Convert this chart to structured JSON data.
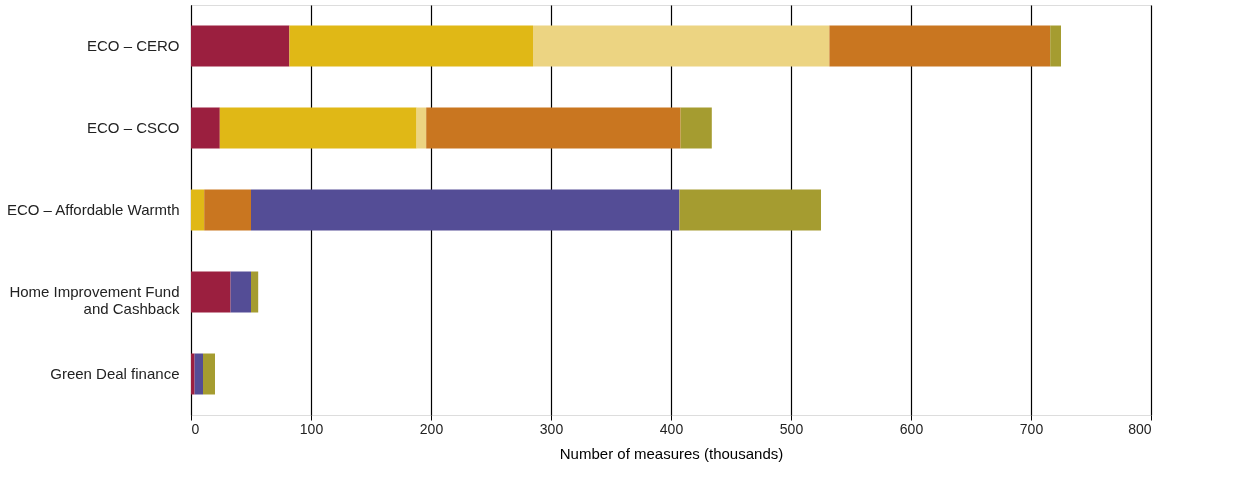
{
  "chart_data": {
    "type": "bar",
    "orientation": "horizontal",
    "stacked": true,
    "xlabel": "Number of measures (thousands)",
    "categories": [
      "ECO – CERO",
      "ECO – CSCO",
      "ECO – Affordable Warmth",
      "Home Improvement Fund and Cashback",
      "Green Deal finance"
    ],
    "series": [
      {
        "color": "#9b1f3f",
        "values": [
          82,
          24,
          null,
          33,
          3
        ]
      },
      {
        "color": "#e0b816",
        "values": [
          203,
          164,
          11,
          null,
          null
        ]
      },
      {
        "color": "#ecd482",
        "values": [
          247,
          8,
          null,
          null,
          null
        ]
      },
      {
        "color": "#c97620",
        "values": [
          184,
          212,
          39,
          null,
          null
        ]
      },
      {
        "color": "#544d96",
        "values": [
          null,
          null,
          357,
          17,
          7
        ]
      },
      {
        "color": "#a59c30",
        "values": [
          9,
          26,
          118,
          6,
          10
        ]
      }
    ],
    "xlim": [
      0,
      800
    ],
    "xticks": [
      0,
      100,
      200,
      300,
      400,
      500,
      600,
      700,
      800
    ],
    "grid": "x"
  }
}
